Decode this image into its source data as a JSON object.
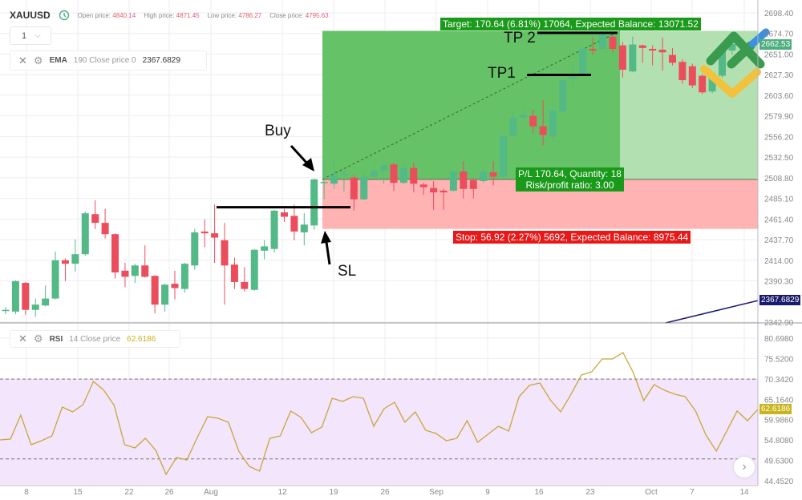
{
  "header": {
    "symbol": "XAUUSD",
    "open_label": "Open price:",
    "open": "4840.14",
    "high_label": "High price:",
    "high": "4871.45",
    "low_label": "Low price:",
    "low": "4786.27",
    "close_label": "Close price:",
    "close": "4795.63",
    "timeframe": "1",
    "chevron": "⌵"
  },
  "ema_legend": {
    "name": "EMA",
    "params": "190 Close price 0",
    "value": "2367.6829"
  },
  "rsi_legend": {
    "name": "RSI",
    "params": "14 Close price",
    "value": "62.6186"
  },
  "price_axis": [
    "2698.40",
    "2674.70",
    "2651.00",
    "2627.30",
    "2603.60",
    "2579.90",
    "2556.20",
    "2532.50",
    "2508.80",
    "2485.10",
    "2461.40",
    "2437.70",
    "2414.00",
    "2390.30",
    "2342.90"
  ],
  "rsi_axis": [
    "80.6980",
    "75.5200",
    "70.3420",
    "65.1640",
    "59.9860",
    "54.8080",
    "49.6300",
    "44.4520"
  ],
  "date_axis": [
    "8",
    "15",
    "22",
    "26",
    "Aug",
    "12",
    "19",
    "26",
    "Sep",
    "9",
    "16",
    "23",
    "Oct",
    "7",
    "14"
  ],
  "tags": {
    "last_price": "2662.53",
    "ema": "2367.6829",
    "rsi": "62.6186"
  },
  "position": {
    "target_label": "Target: 170.64 (6.81%) 17064, Expected Balance: 13071.52",
    "stop_label": "Stop: 56.92 (2.27%) 5692, Expected Balance: 8975.44",
    "pl_label": "P/L 170.64, Quantity: 18",
    "ratio_label": "Risk/profit ratio: 3.00"
  },
  "annotations": {
    "buy": "Buy",
    "sl": "SL",
    "tp1": "TP1",
    "tp2": "TP 2"
  },
  "colors": {
    "up": "#53b987",
    "down": "#eb4d5c",
    "target": "#4caf50",
    "stop": "#ff8a8a",
    "ema": "#1a1a6e",
    "rsi": "#c9a63a",
    "rsi_band": "#f3e5fb"
  },
  "chart_data": [
    {
      "type": "candlestick",
      "title": "XAUUSD",
      "ohlc": [
        [
          2356,
          2360,
          2352,
          2357
        ],
        [
          2355,
          2391,
          2352,
          2390
        ],
        [
          2388,
          2389,
          2351,
          2357
        ],
        [
          2357,
          2370,
          2349,
          2363
        ],
        [
          2362,
          2385,
          2361,
          2370
        ],
        [
          2370,
          2424,
          2369,
          2414
        ],
        [
          2414,
          2416,
          2390,
          2410
        ],
        [
          2410,
          2438,
          2401,
          2421
        ],
        [
          2421,
          2470,
          2419,
          2468
        ],
        [
          2467,
          2483,
          2450,
          2457
        ],
        [
          2457,
          2473,
          2439,
          2444
        ],
        [
          2444,
          2445,
          2393,
          2400
        ],
        [
          2402,
          2411,
          2383,
          2395
        ],
        [
          2396,
          2410,
          2388,
          2408
        ],
        [
          2408,
          2431,
          2394,
          2395
        ],
        [
          2396,
          2397,
          2353,
          2363
        ],
        [
          2363,
          2387,
          2355,
          2386
        ],
        [
          2387,
          2402,
          2369,
          2382
        ],
        [
          2381,
          2411,
          2377,
          2410
        ],
        [
          2408,
          2450,
          2403,
          2446
        ],
        [
          2447,
          2461,
          2429,
          2445
        ],
        [
          2445,
          2478,
          2411,
          2440
        ],
        [
          2437,
          2457,
          2363,
          2408
        ],
        [
          2409,
          2417,
          2381,
          2389
        ],
        [
          2389,
          2406,
          2378,
          2381
        ],
        [
          2380,
          2427,
          2379,
          2426
        ],
        [
          2425,
          2437,
          2415,
          2430
        ],
        [
          2427,
          2472,
          2423,
          2471
        ],
        [
          2469,
          2473,
          2458,
          2464
        ],
        [
          2465,
          2478,
          2437,
          2447
        ],
        [
          2446,
          2468,
          2431,
          2455
        ],
        [
          2454,
          2508,
          2449,
          2507
        ],
        [
          2503,
          2529,
          2484,
          2504
        ],
        [
          2502,
          2529,
          2496,
          2512
        ],
        [
          2512,
          2518,
          2493,
          2513
        ],
        [
          2509,
          2512,
          2471,
          2484
        ],
        [
          2484,
          2517,
          2483,
          2510
        ],
        [
          2510,
          2526,
          2509,
          2517
        ],
        [
          2517,
          2526,
          2502,
          2523
        ],
        [
          2524,
          2526,
          2494,
          2503
        ],
        [
          2503,
          2527,
          2502,
          2520
        ],
        [
          2520,
          2526,
          2492,
          2502
        ],
        [
          2501,
          2503,
          2489,
          2498
        ],
        [
          2497,
          2505,
          2472,
          2492
        ],
        [
          2494,
          2496,
          2472,
          2492
        ],
        [
          2494,
          2517,
          2493,
          2516
        ],
        [
          2516,
          2528,
          2485,
          2496
        ],
        [
          2506,
          2508,
          2485,
          2496
        ],
        [
          2505,
          2520,
          2503,
          2516
        ],
        [
          2515,
          2528,
          2500,
          2510
        ],
        [
          2510,
          2558,
          2509,
          2557
        ],
        [
          2557,
          2584,
          2556,
          2578
        ],
        [
          2578,
          2587,
          2576,
          2581
        ],
        [
          2580,
          2587,
          2560,
          2568
        ],
        [
          2568,
          2598,
          2546,
          2558
        ],
        [
          2556,
          2593,
          2549,
          2586
        ],
        [
          2585,
          2623,
          2584,
          2621
        ],
        [
          2623,
          2639,
          2614,
          2628
        ],
        [
          2626,
          2658,
          2625,
          2657
        ],
        [
          2657,
          2670,
          2650,
          2655
        ],
        [
          2657,
          2674,
          2656,
          2673
        ],
        [
          2671,
          2672,
          2653,
          2657
        ],
        [
          2661,
          2665,
          2624,
          2633
        ],
        [
          2631,
          2671,
          2630,
          2662
        ],
        [
          2661,
          2662,
          2641,
          2658
        ],
        [
          2657,
          2661,
          2638,
          2655
        ],
        [
          2656,
          2670,
          2632,
          2653
        ],
        [
          2650,
          2658,
          2638,
          2641
        ],
        [
          2642,
          2645,
          2617,
          2621
        ],
        [
          2637,
          2640,
          2612,
          2615
        ],
        [
          2626,
          2628,
          2605,
          2607
        ],
        [
          2608,
          2630,
          2606,
          2627
        ],
        [
          2626,
          2656,
          2624,
          2656
        ],
        [
          2655,
          2665,
          2650,
          2662.53
        ]
      ],
      "ema_value": 2367.6829,
      "ylim": [
        2342.9,
        2698.4
      ],
      "trade": {
        "entry": 2507,
        "target": 2677.64,
        "stop": 2450.08
      },
      "hline_level": 2475,
      "tp1_level": 2627,
      "tp2_level": 2677
    },
    {
      "type": "line",
      "title": "RSI",
      "values": [
        54.84,
        55.04,
        61.15,
        53.62,
        54.63,
        55.86,
        63.19,
        61.96,
        63.8,
        69.7,
        67.46,
        63.59,
        53.62,
        52.8,
        55.25,
        52.19,
        46.08,
        50.36,
        49.75,
        55.45,
        60.74,
        60.34,
        59.32,
        51.99,
        48.12,
        46.9,
        55.25,
        55.86,
        62.17,
        60.54,
        56.67,
        58.1,
        65.42,
        64.61,
        65.83,
        65.42,
        58.3,
        62.78,
        64.41,
        59.32,
        61.96,
        57.28,
        56.47,
        54.63,
        55.25,
        59.72,
        54.23,
        56.26,
        58.3,
        57.08,
        65.83,
        68.68,
        69.29,
        65.02,
        61.96,
        66.44,
        71.33,
        72.15,
        75.4,
        75.4,
        77.03,
        71.94,
        64.81,
        68.89,
        67.46,
        66.44,
        65.83,
        62.17,
        56.06,
        51.99,
        57.08,
        62.17,
        59.72,
        62.62
      ],
      "ylim": [
        44.452,
        80.698
      ],
      "bands": [
        50,
        70
      ]
    }
  ]
}
